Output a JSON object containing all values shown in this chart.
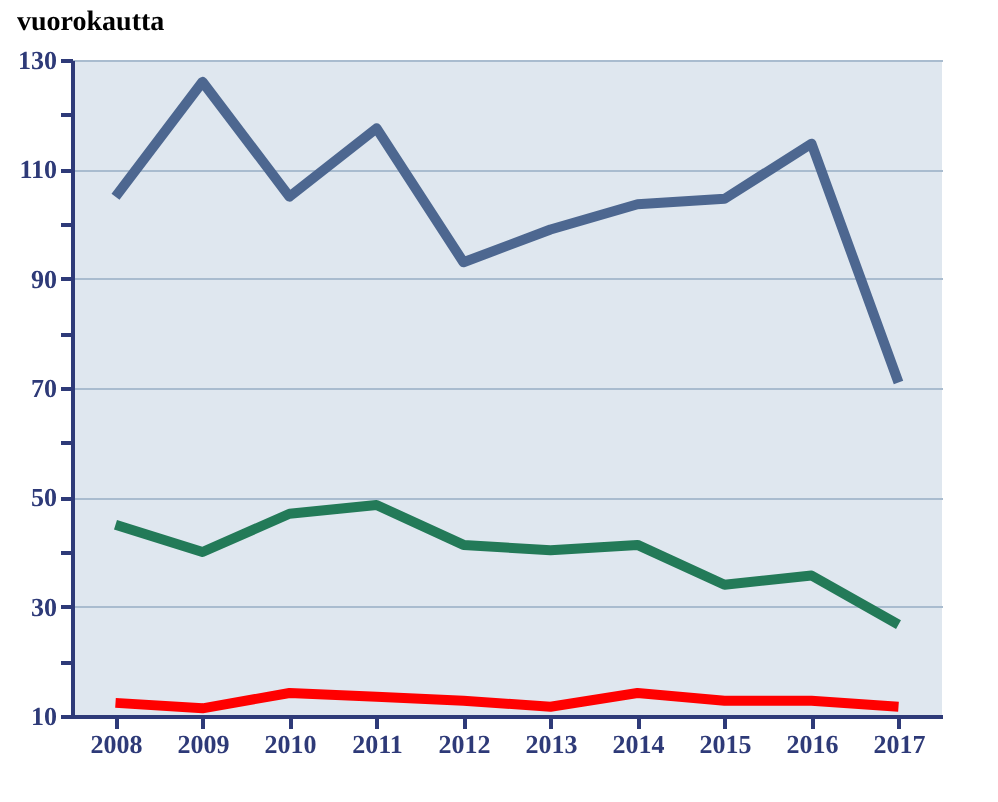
{
  "chart_data": {
    "type": "line",
    "title": "vuorokautta",
    "categories": [
      "2008",
      "2009",
      "2010",
      "2011",
      "2012",
      "2013",
      "2014",
      "2015",
      "2016",
      "2017"
    ],
    "series": [
      {
        "color": "#4d6790",
        "values": [
          105,
          126,
          105,
          117.5,
          93,
          99,
          103.6,
          104.6,
          114.7,
          71
        ]
      },
      {
        "color": "#237a58",
        "values": [
          45,
          40,
          47,
          48.6,
          41.3,
          40.3,
          41.3,
          34,
          35.7,
          26.7
        ]
      },
      {
        "color": "#ff0000",
        "values": [
          12.4,
          11.4,
          14.2,
          13.5,
          12.8,
          11.7,
          14.2,
          12.8,
          12.8,
          11.7
        ]
      }
    ],
    "ylim": [
      10,
      130
    ],
    "yticks": [
      10,
      {
        "value": 20,
        "label": null
      },
      30,
      {
        "value": 40,
        "label": null
      },
      50,
      {
        "value": 60,
        "label": null
      },
      70,
      {
        "value": 80,
        "label": null
      },
      90,
      {
        "value": 100,
        "label": null
      },
      110,
      {
        "value": 120,
        "label": null
      },
      130
    ],
    "grid": "y",
    "marker": "none",
    "line_style": "solid",
    "legend": false
  }
}
